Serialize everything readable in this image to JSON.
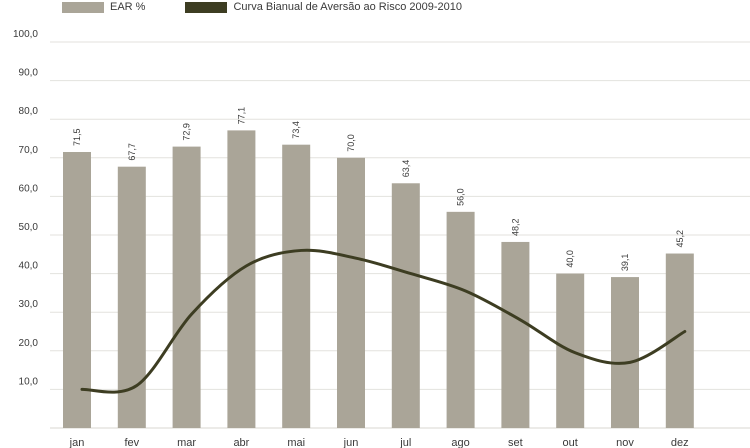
{
  "chart_data": {
    "type": "bar",
    "categories": [
      "jan",
      "fev",
      "mar",
      "abr",
      "mai",
      "jun",
      "jul",
      "ago",
      "set",
      "out",
      "nov",
      "dez"
    ],
    "series": [
      {
        "name": "EAR %",
        "type": "bar",
        "color": "#aaa598",
        "values": [
          71.5,
          67.7,
          72.9,
          77.1,
          73.4,
          70.0,
          63.4,
          56.0,
          48.2,
          40.0,
          39.1,
          45.2
        ],
        "labels": [
          "71,5",
          "67,7",
          "72,9",
          "77,1",
          "73,4",
          "70,0",
          "63,4",
          "56,0",
          "48,2",
          "40,0",
          "39,1",
          "45,2"
        ]
      },
      {
        "name": "Curva Bianual de Aversão ao Risco 2009-2010",
        "type": "line",
        "color": "#3d3d22",
        "values": [
          10.0,
          11.0,
          29.5,
          42.0,
          46.0,
          44.0,
          40.0,
          35.5,
          28.0,
          19.5,
          17.0,
          25.0
        ]
      }
    ],
    "yticks": [
      "10,0",
      "20,0",
      "30,0",
      "40,0",
      "50,0",
      "60,0",
      "70,0",
      "80,0",
      "90,0",
      "100,0"
    ],
    "ylim": [
      0,
      100
    ],
    "grid": true,
    "legend_position": "top-left"
  }
}
